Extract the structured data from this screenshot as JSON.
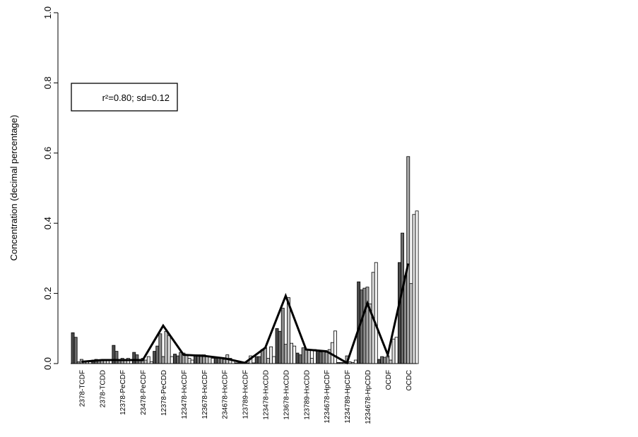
{
  "chart_data": {
    "type": "bar",
    "ylabel": "Concentration (decimal percentage)",
    "xlabel": "",
    "ylim": [
      0,
      1.0
    ],
    "yticks": [
      "0.0",
      "0.2",
      "0.4",
      "0.6",
      "0.8",
      "1.0"
    ],
    "grid": false,
    "legend": {
      "text": "r²=0.80; sd=0.12",
      "placement": "top-left"
    },
    "categories": [
      "2378-TCDF",
      "2378-TCDD",
      "12378-PeCDF",
      "23478-PeCDF",
      "12378-PeCDD",
      "123478-HxCDF",
      "123678-HxCDF",
      "234678-HxCDF",
      "123789-HxCDF",
      "123478-HxCDD",
      "123678-HxCDD",
      "123789-HxCDD",
      "1234678-HpCDF",
      "1234789-HpCDF",
      "1234678-HpCDD",
      "OCDF",
      "OCDC"
    ],
    "bar_colors": [
      "#4a4a4a",
      "#6a6a6a",
      "#8c8c8c",
      "#a8a8a8",
      "#c4c4c4",
      "#dedede",
      "#f6f6f6"
    ],
    "bar_groups": [
      [
        0.088,
        0.075,
        0.005,
        0.012,
        0.005,
        0.008,
        0.005
      ],
      [
        0.01,
        0.012,
        0.01,
        0.01,
        0.008,
        0.01,
        0.008
      ],
      [
        0.052,
        0.035,
        0.01,
        0.015,
        0.01,
        0.015,
        0.01
      ],
      [
        0.032,
        0.025,
        0.012,
        0.015,
        0.01,
        0.02,
        0.005
      ],
      [
        0.035,
        0.05,
        0.085,
        0.02,
        0.092,
        0.08,
        0.02
      ],
      [
        0.027,
        0.022,
        0.032,
        0.03,
        0.025,
        0.015,
        0.01
      ],
      [
        0.025,
        0.025,
        0.025,
        0.025,
        0.02,
        0.02,
        0.015
      ],
      [
        0.015,
        0.015,
        0.015,
        0.012,
        0.025,
        0.015,
        0.01
      ],
      [
        0.002,
        0.002,
        0.003,
        0.002,
        0.002,
        0.022,
        0.002
      ],
      [
        0.02,
        0.02,
        0.04,
        0.045,
        0.015,
        0.048,
        0.02
      ],
      [
        0.1,
        0.092,
        0.158,
        0.055,
        0.188,
        0.058,
        0.05
      ],
      [
        0.03,
        0.025,
        0.045,
        0.04,
        0.04,
        0.015,
        0.04
      ],
      [
        0.038,
        0.033,
        0.035,
        0.032,
        0.04,
        0.06,
        0.093
      ],
      [
        0.003,
        0.003,
        0.003,
        0.022,
        0.005,
        0.003,
        0.01
      ],
      [
        0.233,
        0.21,
        0.215,
        0.218,
        0.17,
        0.26,
        0.288
      ],
      [
        0.012,
        0.02,
        0.018,
        0.022,
        0.01,
        0.07,
        0.075
      ],
      [
        0.288,
        0.372,
        0.25,
        0.59,
        0.228,
        0.425,
        0.435
      ]
    ],
    "line_values": [
      0.005,
      0.01,
      0.01,
      0.01,
      0.108,
      0.025,
      0.022,
      0.015,
      0.002,
      0.045,
      0.193,
      0.04,
      0.035,
      0.002,
      0.172,
      0.025,
      0.285
    ]
  }
}
